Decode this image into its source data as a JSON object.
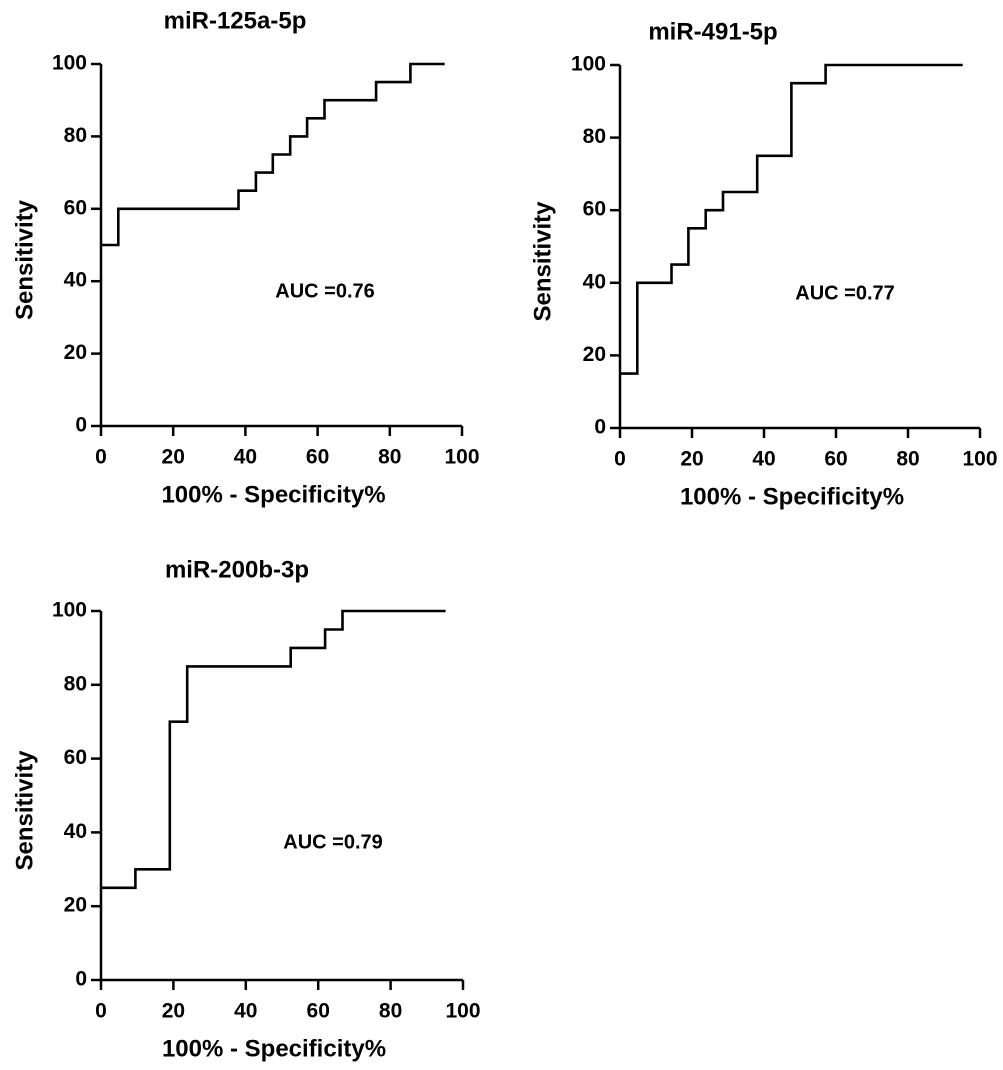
{
  "chart_data": [
    {
      "type": "line",
      "title": "miR-125a-5p",
      "xlabel": "100% - Specificity%",
      "ylabel": "Sensitivity",
      "xlim": [
        0,
        100
      ],
      "ylim": [
        0,
        100
      ],
      "xticks": [
        0,
        20,
        40,
        60,
        80,
        100
      ],
      "yticks": [
        0,
        20,
        40,
        60,
        80,
        100
      ],
      "annotation": "AUC =0.76",
      "series": [
        {
          "x": [
            0,
            4.8,
            4.8,
            38.1,
            38.1,
            42.9,
            42.9,
            47.6,
            47.6,
            52.4,
            52.4,
            57.1,
            57.1,
            61.9,
            61.9,
            76.2,
            76.2,
            85.7,
            85.7,
            95.2
          ],
          "y": [
            50,
            50,
            60,
            60,
            65,
            65,
            70,
            70,
            75,
            75,
            80,
            80,
            85,
            85,
            90,
            90,
            95,
            95,
            100,
            100
          ]
        }
      ]
    },
    {
      "type": "line",
      "title": "miR-491-5p",
      "xlabel": "100% - Specificity%",
      "ylabel": "Sensitivity",
      "xlim": [
        0,
        100
      ],
      "ylim": [
        0,
        100
      ],
      "xticks": [
        0,
        20,
        40,
        60,
        80,
        100
      ],
      "yticks": [
        0,
        20,
        40,
        60,
        80,
        100
      ],
      "annotation": "AUC =0.77",
      "series": [
        {
          "x": [
            0,
            4.8,
            4.8,
            14.3,
            14.3,
            19.0,
            19.0,
            23.8,
            23.8,
            28.6,
            28.6,
            38.1,
            38.1,
            47.6,
            47.6,
            57.1,
            57.1,
            95.2
          ],
          "y": [
            15,
            15,
            40,
            40,
            45,
            45,
            55,
            55,
            60,
            60,
            65,
            65,
            75,
            75,
            95,
            95,
            100,
            100
          ]
        }
      ]
    },
    {
      "type": "line",
      "title": "miR-200b-3p",
      "xlabel": "100% - Specificity%",
      "ylabel": "Sensitivity",
      "xlim": [
        0,
        100
      ],
      "ylim": [
        0,
        100
      ],
      "xticks": [
        0,
        20,
        40,
        60,
        80,
        100
      ],
      "yticks": [
        0,
        20,
        40,
        60,
        80,
        100
      ],
      "annotation": "AUC =0.79",
      "series": [
        {
          "x": [
            0,
            9.5,
            9.5,
            19.0,
            19.0,
            23.8,
            23.8,
            52.4,
            52.4,
            61.9,
            61.9,
            66.7,
            66.7,
            95.2
          ],
          "y": [
            25,
            25,
            30,
            30,
            70,
            70,
            85,
            85,
            90,
            90,
            95,
            95,
            100,
            100
          ]
        }
      ]
    }
  ]
}
